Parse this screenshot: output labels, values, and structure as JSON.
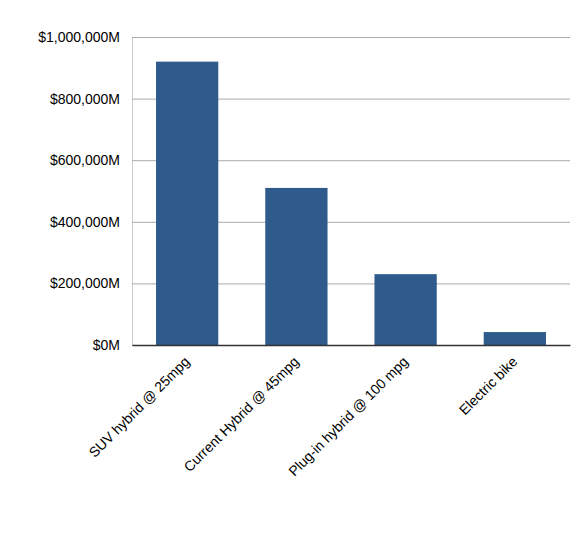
{
  "chart_data": {
    "type": "bar",
    "categories": [
      "SUV hybrid @ 25mpg",
      "Current Hybrid @ 45mpg",
      "Plug-in hybrid @ 100 mpg",
      "Electric bike"
    ],
    "values": [
      920000,
      510000,
      230000,
      42000
    ],
    "color": "#2e5a8c",
    "ylim": [
      0,
      1000000
    ],
    "yticks": [
      {
        "value": 0,
        "label": "$0M"
      },
      {
        "value": 200000,
        "label": "$200,000M"
      },
      {
        "value": 400000,
        "label": "$400,000M"
      },
      {
        "value": 600000,
        "label": "$600,000M"
      },
      {
        "value": 800000,
        "label": "$800,000M"
      },
      {
        "value": 1000000,
        "label": "$1,000,000M"
      }
    ],
    "grid": true
  }
}
